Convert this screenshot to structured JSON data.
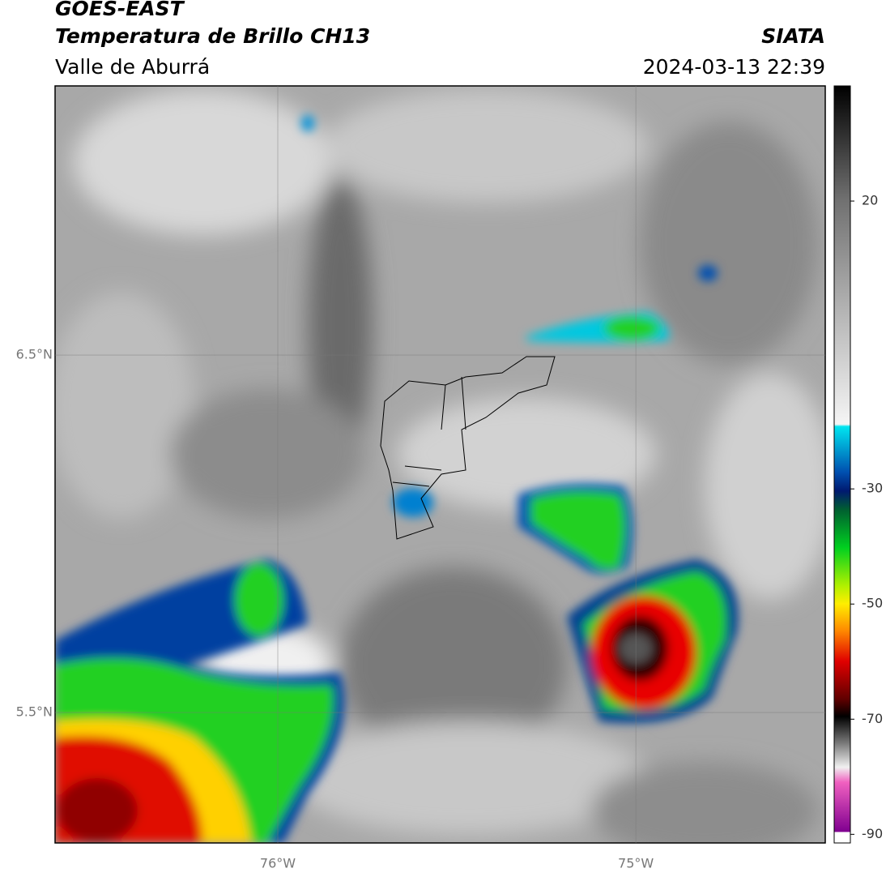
{
  "chart_data": {
    "type": "map",
    "title": "GOES-EAST",
    "subtitle": "Temperatura de Brillo CH13",
    "region": "Valle de Aburrá",
    "source": "SIATA",
    "datetime": "2024-03-13 22:39",
    "xlim": [
      -76.622,
      -74.471
    ],
    "ylim": [
      5.135,
      7.253
    ],
    "xticks": [
      {
        "value": -76,
        "label": "76°W"
      },
      {
        "value": -75,
        "label": "75°W"
      }
    ],
    "yticks": [
      {
        "value": 6.5,
        "label": "6.5°N"
      },
      {
        "value": 5.5,
        "label": "5.5°N"
      }
    ],
    "grid": true,
    "colorbar": {
      "lim": [
        -91.5,
        40
      ],
      "ticks": [
        20,
        -30,
        -50,
        -70,
        -90
      ]
    }
  }
}
